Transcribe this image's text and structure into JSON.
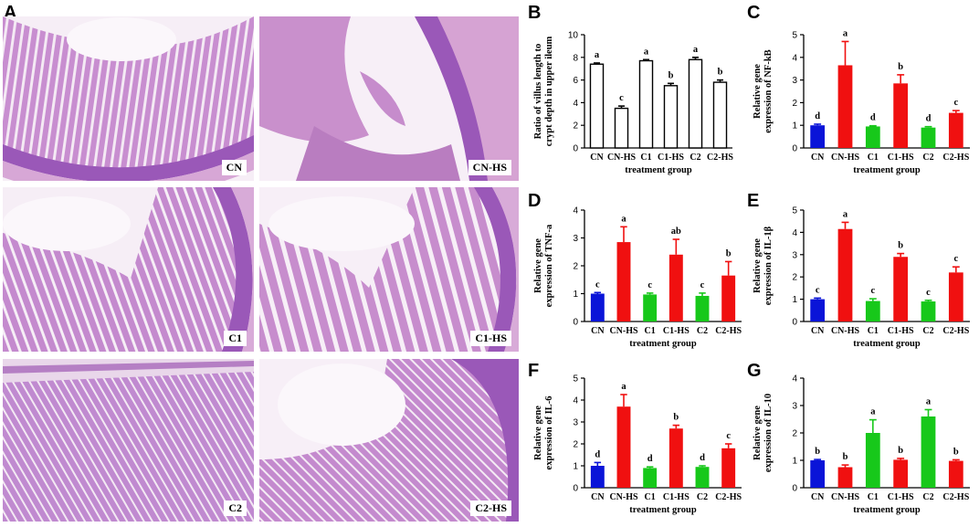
{
  "panel_A": {
    "letter": "A",
    "tiles": [
      {
        "label": "CN"
      },
      {
        "label": "CN-HS"
      },
      {
        "label": "C1"
      },
      {
        "label": "C1-HS"
      },
      {
        "label": "C2"
      },
      {
        "label": "C2-HS"
      }
    ]
  },
  "colors": {
    "blue": "#0a14d8",
    "red": "#f01010",
    "green": "#17c81a",
    "white": "#ffffff",
    "tissue_pink": "#c98fc8",
    "tissue_purple": "#9a58b8"
  },
  "chart_data": [
    {
      "panel": "B",
      "type": "bar",
      "categories": [
        "CN",
        "CN-HS",
        "C1",
        "C1-HS",
        "C2",
        "C2-HS"
      ],
      "values": [
        7.4,
        3.5,
        7.7,
        5.5,
        7.8,
        5.8
      ],
      "errors": [
        0.1,
        0.2,
        0.1,
        0.2,
        0.2,
        0.2
      ],
      "letters": [
        "a",
        "c",
        "a",
        "b",
        "a",
        "b"
      ],
      "fills": [
        "white",
        "white",
        "white",
        "white",
        "white",
        "white"
      ],
      "ylim": [
        0,
        10
      ],
      "yticks": [
        0,
        2,
        4,
        6,
        8,
        10
      ],
      "ylabel": [
        "Ratio of villus length to",
        "crypt depth in upper ileum"
      ],
      "xlabel": "treatment group"
    },
    {
      "panel": "C",
      "type": "bar",
      "categories": [
        "CN",
        "CN-HS",
        "C1",
        "C1-HS",
        "C2",
        "C2-HS"
      ],
      "values": [
        1.0,
        3.65,
        0.95,
        2.85,
        0.9,
        1.55
      ],
      "errors": [
        0.05,
        1.05,
        0.03,
        0.38,
        0.04,
        0.1
      ],
      "letters": [
        "d",
        "a",
        "d",
        "b",
        "d",
        "c"
      ],
      "fills": [
        "blue",
        "red",
        "green",
        "red",
        "green",
        "red"
      ],
      "ylim": [
        0,
        5
      ],
      "yticks": [
        0,
        1,
        2,
        3,
        4,
        5
      ],
      "ylabel": [
        "Relative gene",
        "expression of NF-kB"
      ],
      "xlabel": "treatment group"
    },
    {
      "panel": "D",
      "type": "bar",
      "categories": [
        "CN",
        "CN-HS",
        "C1",
        "C1-HS",
        "C2",
        "C2-HS"
      ],
      "values": [
        1.0,
        2.85,
        0.97,
        2.4,
        0.92,
        1.65
      ],
      "errors": [
        0.04,
        0.55,
        0.05,
        0.55,
        0.1,
        0.5
      ],
      "letters": [
        "c",
        "a",
        "c",
        "ab",
        "c",
        "b"
      ],
      "fills": [
        "blue",
        "red",
        "green",
        "red",
        "green",
        "red"
      ],
      "ylim": [
        0,
        4
      ],
      "yticks": [
        0,
        1,
        2,
        3,
        4
      ],
      "ylabel": [
        "Relative gene",
        "expression of TNF-a"
      ],
      "xlabel": "treatment group"
    },
    {
      "panel": "E",
      "type": "bar",
      "categories": [
        "CN",
        "CN-HS",
        "C1",
        "C1-HS",
        "C2",
        "C2-HS"
      ],
      "values": [
        1.0,
        4.15,
        0.92,
        2.9,
        0.9,
        2.2
      ],
      "errors": [
        0.05,
        0.3,
        0.1,
        0.15,
        0.05,
        0.25
      ],
      "letters": [
        "c",
        "a",
        "c",
        "b",
        "c",
        "c"
      ],
      "fills": [
        "blue",
        "red",
        "green",
        "red",
        "green",
        "red"
      ],
      "ylim": [
        0,
        5
      ],
      "yticks": [
        0,
        1,
        2,
        3,
        4,
        5
      ],
      "ylabel": [
        "Relative gene",
        "expression of IL-1β"
      ],
      "xlabel": "treatment group"
    },
    {
      "panel": "F",
      "type": "bar",
      "categories": [
        "CN",
        "CN-HS",
        "C1",
        "C1-HS",
        "C2",
        "C2-HS"
      ],
      "values": [
        1.0,
        3.7,
        0.9,
        2.7,
        0.95,
        1.8
      ],
      "errors": [
        0.15,
        0.55,
        0.05,
        0.15,
        0.05,
        0.2
      ],
      "letters": [
        "d",
        "a",
        "d",
        "b",
        "d",
        "c"
      ],
      "fills": [
        "blue",
        "red",
        "green",
        "red",
        "green",
        "red"
      ],
      "ylim": [
        0,
        5
      ],
      "yticks": [
        0,
        1,
        2,
        3,
        4,
        5
      ],
      "ylabel": [
        "Relative gene",
        "expression of IL-6"
      ],
      "xlabel": "treatment group"
    },
    {
      "panel": "G",
      "type": "bar",
      "categories": [
        "CN",
        "CN-HS",
        "C1",
        "C1-HS",
        "C2",
        "C2-HS"
      ],
      "values": [
        1.0,
        0.75,
        2.0,
        1.02,
        2.6,
        0.98
      ],
      "errors": [
        0.03,
        0.08,
        0.48,
        0.05,
        0.25,
        0.04
      ],
      "letters": [
        "b",
        "b",
        "a",
        "b",
        "a",
        "b"
      ],
      "fills": [
        "blue",
        "red",
        "green",
        "red",
        "green",
        "red"
      ],
      "ylim": [
        0,
        4
      ],
      "yticks": [
        0,
        1,
        2,
        3,
        4
      ],
      "ylabel": [
        "Relative gene",
        "expression of IL-10"
      ],
      "xlabel": "treatment group"
    }
  ]
}
